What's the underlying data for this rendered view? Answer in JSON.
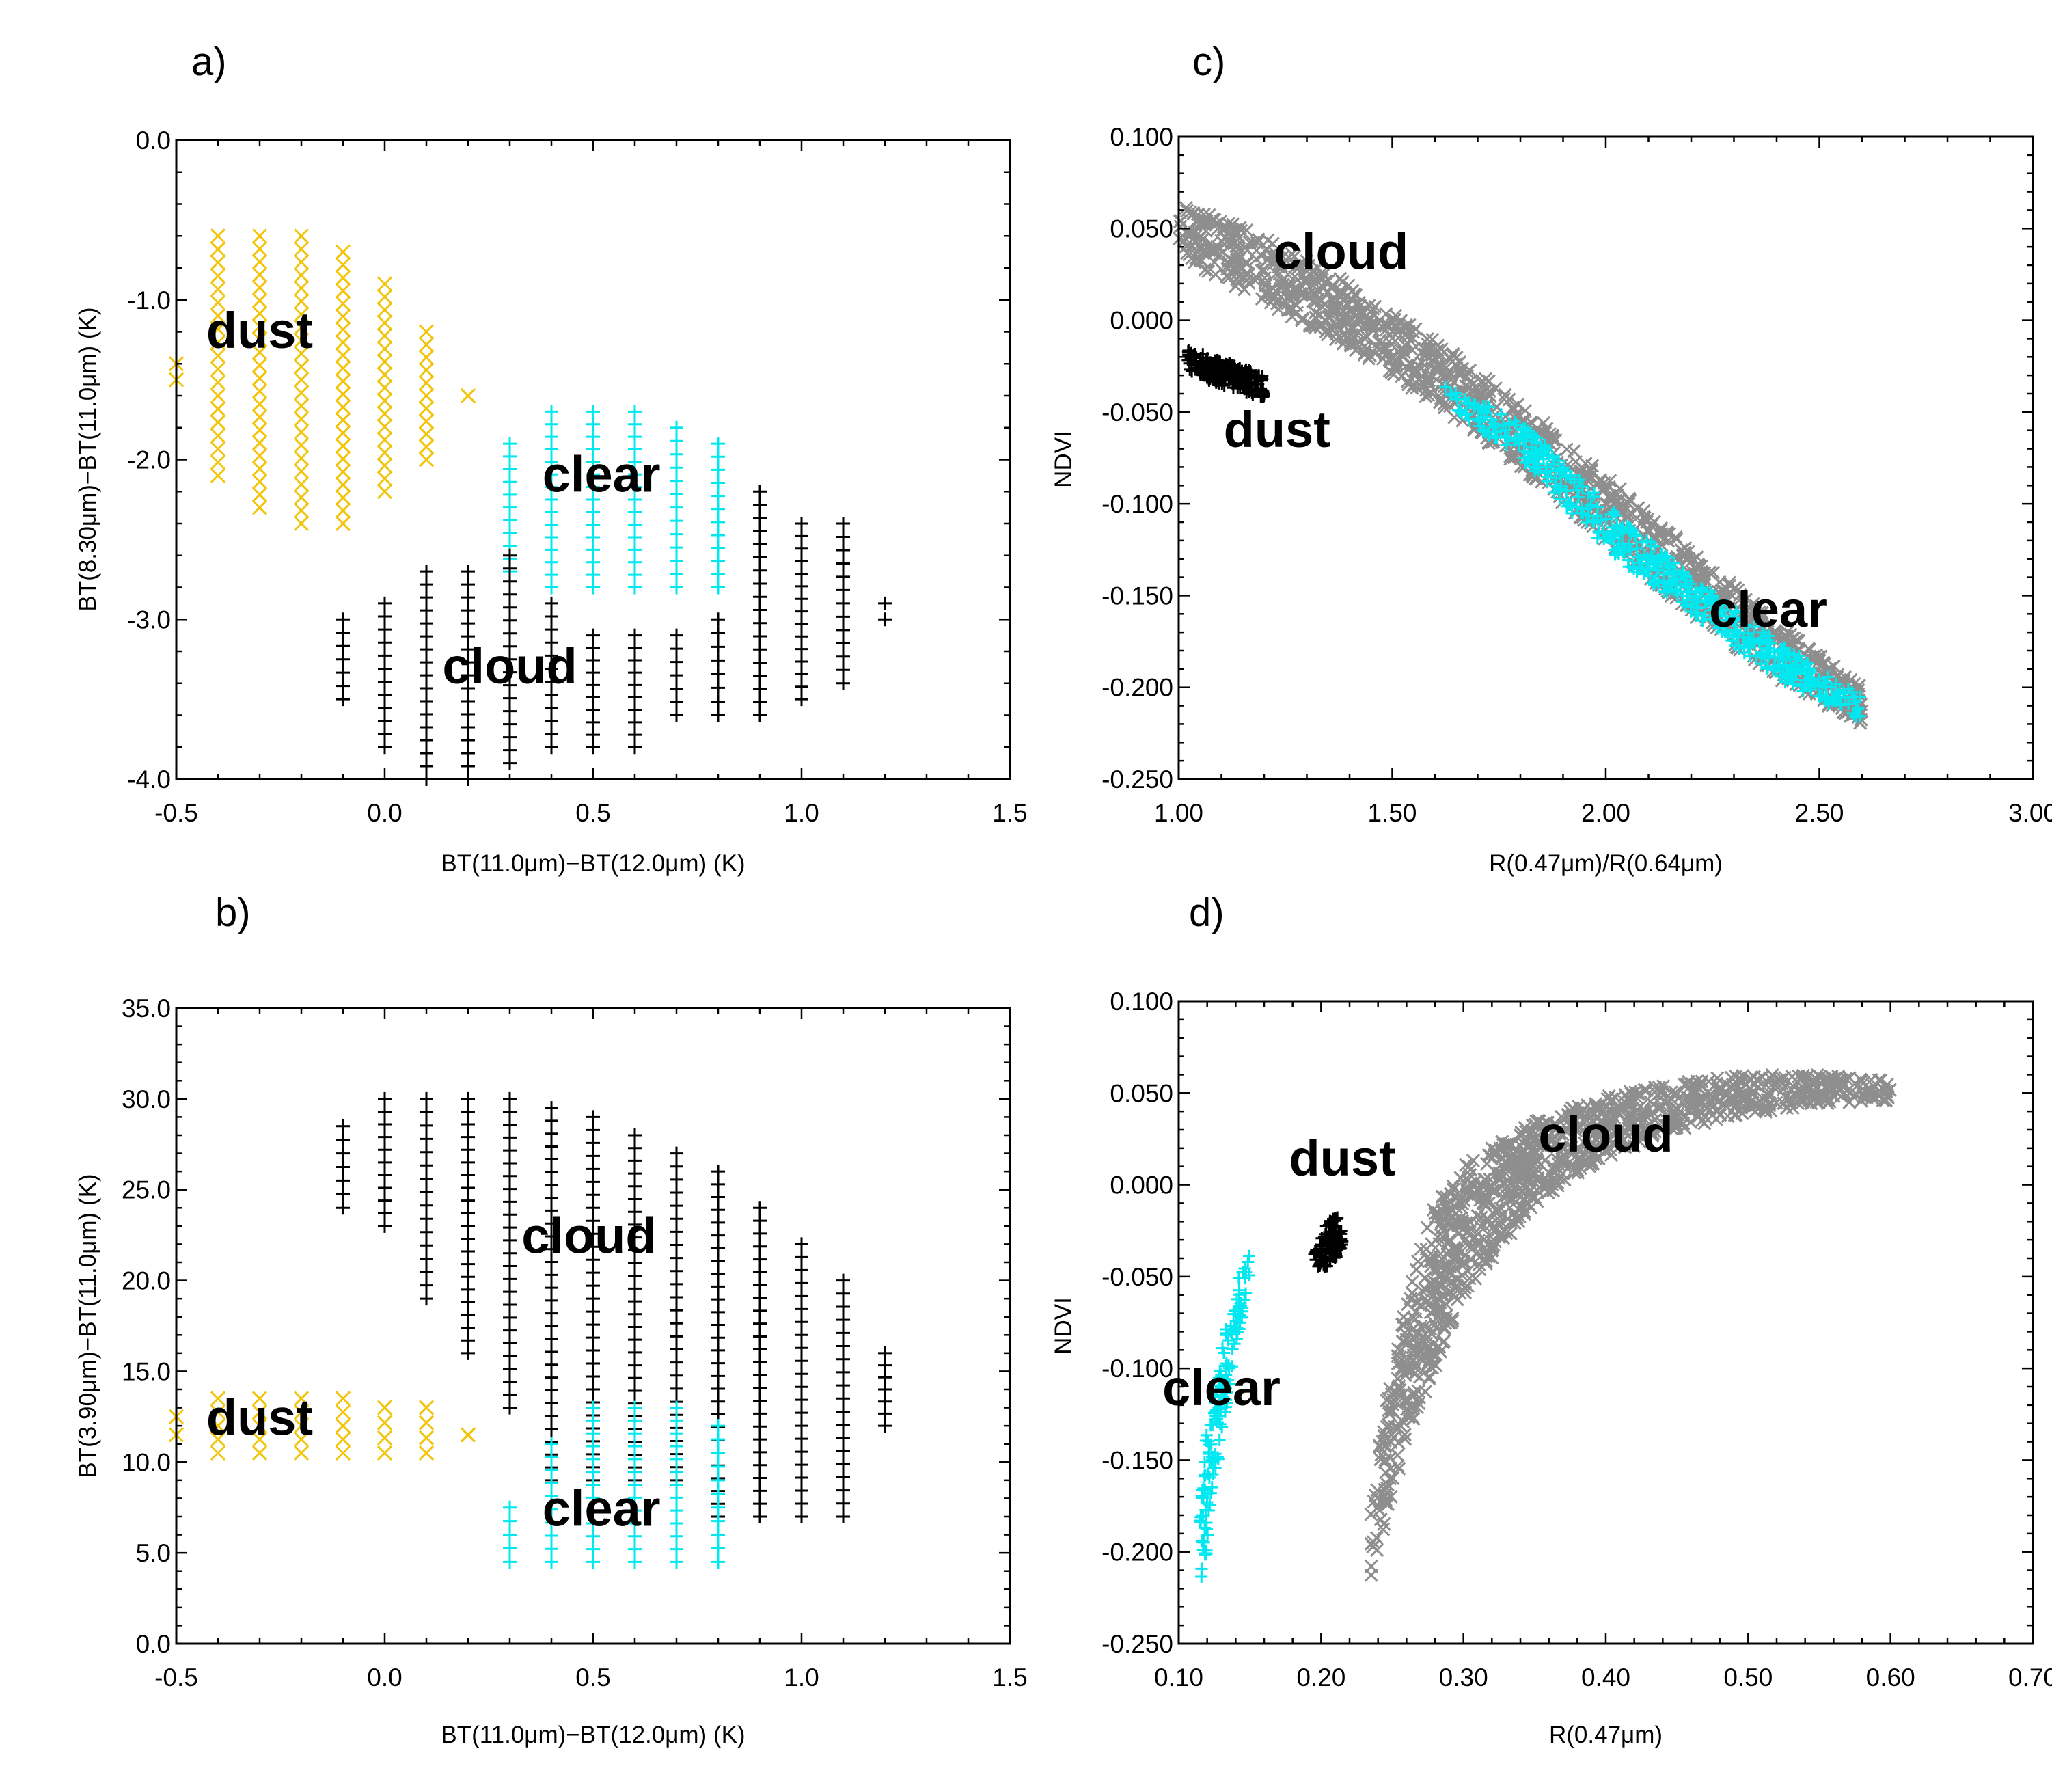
{
  "colors": {
    "dust": "#F2C40A",
    "clear": "#00E8F0",
    "cloud": "#000000",
    "cloud_gray": "#8E8E8E"
  },
  "chart_data": [
    {
      "id": "a",
      "type": "scatter",
      "panel_label": "a)",
      "xlabel": "BT(11.0μm)−BT(12.0μm) (K)",
      "ylabel": "BT(8.30μm)−BT(11.0μm) (K)",
      "xlim": [
        -0.5,
        1.5
      ],
      "ylim": [
        -4.0,
        0.0
      ],
      "x_ticks": [
        -0.5,
        0.0,
        0.5,
        1.0,
        1.5
      ],
      "x_tick_labels": [
        "-0.5",
        "0.0",
        "0.5",
        "1.0",
        "1.5"
      ],
      "y_ticks": [
        -4.0,
        -3.0,
        -2.0,
        -1.0,
        0.0
      ],
      "y_tick_labels": [
        "-4.0",
        "-3.0",
        "-2.0",
        "-1.0",
        "0.0"
      ],
      "annotations": [
        {
          "text": "dust",
          "x": -0.3,
          "y": -1.3
        },
        {
          "text": "clear",
          "x": 0.52,
          "y": -2.2
        },
        {
          "text": "cloud",
          "x": 0.3,
          "y": -3.4
        }
      ],
      "series": [
        {
          "name": "dust",
          "marker": "x",
          "color": "#F2C40A",
          "columns": [
            {
              "x": -0.5,
              "ymin": -1.5,
              "ymax": -1.4
            },
            {
              "x": -0.4,
              "ymin": -2.1,
              "ymax": -0.6
            },
            {
              "x": -0.3,
              "ymin": -2.3,
              "ymax": -0.6
            },
            {
              "x": -0.2,
              "ymin": -2.4,
              "ymax": -0.6
            },
            {
              "x": -0.1,
              "ymin": -2.4,
              "ymax": -0.7
            },
            {
              "x": 0.0,
              "ymin": -2.2,
              "ymax": -0.9
            },
            {
              "x": 0.1,
              "ymin": -2.0,
              "ymax": -1.2
            },
            {
              "x": 0.2,
              "ymin": -1.6,
              "ymax": -1.6
            }
          ]
        },
        {
          "name": "clear",
          "marker": "+",
          "color": "#00E8F0",
          "columns": [
            {
              "x": 0.3,
              "ymin": -2.7,
              "ymax": -1.9
            },
            {
              "x": 0.4,
              "ymin": -2.8,
              "ymax": -1.7
            },
            {
              "x": 0.5,
              "ymin": -2.8,
              "ymax": -1.7
            },
            {
              "x": 0.6,
              "ymin": -2.8,
              "ymax": -1.7
            },
            {
              "x": 0.7,
              "ymin": -2.8,
              "ymax": -1.8
            },
            {
              "x": 0.8,
              "ymin": -2.8,
              "ymax": -1.9
            }
          ]
        },
        {
          "name": "cloud",
          "marker": "+",
          "color": "#000000",
          "columns": [
            {
              "x": -0.1,
              "ymin": -3.5,
              "ymax": -3.0
            },
            {
              "x": 0.0,
              "ymin": -3.8,
              "ymax": -2.9
            },
            {
              "x": 0.1,
              "ymin": -4.0,
              "ymax": -2.7
            },
            {
              "x": 0.2,
              "ymin": -4.0,
              "ymax": -2.7
            },
            {
              "x": 0.3,
              "ymin": -3.9,
              "ymax": -2.6
            },
            {
              "x": 0.4,
              "ymin": -3.8,
              "ymax": -2.9
            },
            {
              "x": 0.5,
              "ymin": -3.8,
              "ymax": -3.1
            },
            {
              "x": 0.6,
              "ymin": -3.8,
              "ymax": -3.1
            },
            {
              "x": 0.7,
              "ymin": -3.6,
              "ymax": -3.1
            },
            {
              "x": 0.8,
              "ymin": -3.6,
              "ymax": -3.0
            },
            {
              "x": 0.9,
              "ymin": -3.6,
              "ymax": -2.2
            },
            {
              "x": 1.0,
              "ymin": -3.5,
              "ymax": -2.4
            },
            {
              "x": 1.1,
              "ymin": -3.4,
              "ymax": -2.4
            },
            {
              "x": 1.2,
              "ymin": -3.0,
              "ymax": -2.9
            }
          ]
        }
      ]
    },
    {
      "id": "b",
      "type": "scatter",
      "panel_label": "b)",
      "xlabel": "BT(11.0μm)−BT(12.0μm) (K)",
      "ylabel": "BT(3.90μm)−BT(11.0μm) (K)",
      "xlim": [
        -0.5,
        1.5
      ],
      "ylim": [
        0.0,
        35.0
      ],
      "x_ticks": [
        -0.5,
        0.0,
        0.5,
        1.0,
        1.5
      ],
      "x_tick_labels": [
        "-0.5",
        "0.0",
        "0.5",
        "1.0",
        "1.5"
      ],
      "y_ticks": [
        0,
        5,
        10,
        15,
        20,
        25,
        30,
        35
      ],
      "y_tick_labels": [
        "0.0",
        "5.0",
        "10.0",
        "15.0",
        "20.0",
        "25.0",
        "30.0",
        "35.0"
      ],
      "annotations": [
        {
          "text": "dust",
          "x": -0.3,
          "y": 11.5
        },
        {
          "text": "cloud",
          "x": 0.49,
          "y": 21.5
        },
        {
          "text": "clear",
          "x": 0.52,
          "y": 6.5
        }
      ],
      "series": [
        {
          "name": "dust",
          "marker": "x",
          "color": "#F2C40A",
          "columns": [
            {
              "x": -0.5,
              "ymin": 11.5,
              "ymax": 12.5
            },
            {
              "x": -0.4,
              "ymin": 10.5,
              "ymax": 13.5
            },
            {
              "x": -0.3,
              "ymin": 10.5,
              "ymax": 13.5
            },
            {
              "x": -0.2,
              "ymin": 10.5,
              "ymax": 13.5
            },
            {
              "x": -0.1,
              "ymin": 10.5,
              "ymax": 13.5
            },
            {
              "x": 0.0,
              "ymin": 10.5,
              "ymax": 13.0
            },
            {
              "x": 0.1,
              "ymin": 10.5,
              "ymax": 13.0
            },
            {
              "x": 0.2,
              "ymin": 11.5,
              "ymax": 11.5
            }
          ]
        },
        {
          "name": "cloud",
          "marker": "+",
          "color": "#000000",
          "columns": [
            {
              "x": -0.1,
              "ymin": 24.0,
              "ymax": 28.5
            },
            {
              "x": 0.0,
              "ymin": 23.0,
              "ymax": 30.0
            },
            {
              "x": 0.1,
              "ymin": 19.0,
              "ymax": 30.0
            },
            {
              "x": 0.2,
              "ymin": 16.0,
              "ymax": 30.0
            },
            {
              "x": 0.3,
              "ymin": 13.0,
              "ymax": 30.0
            },
            {
              "x": 0.4,
              "ymin": 9.0,
              "ymax": 29.5
            },
            {
              "x": 0.5,
              "ymin": 9.0,
              "ymax": 29.0
            },
            {
              "x": 0.6,
              "ymin": 9.0,
              "ymax": 28.0
            },
            {
              "x": 0.7,
              "ymin": 9.0,
              "ymax": 27.0
            },
            {
              "x": 0.8,
              "ymin": 7.0,
              "ymax": 26.0
            },
            {
              "x": 0.9,
              "ymin": 7.0,
              "ymax": 24.0
            },
            {
              "x": 1.0,
              "ymin": 7.0,
              "ymax": 22.0
            },
            {
              "x": 1.1,
              "ymin": 7.0,
              "ymax": 20.0
            },
            {
              "x": 1.2,
              "ymin": 12.0,
              "ymax": 16.0
            }
          ]
        },
        {
          "name": "clear",
          "marker": "+",
          "color": "#00E8F0",
          "columns": [
            {
              "x": 0.3,
              "ymin": 4.5,
              "ymax": 7.5
            },
            {
              "x": 0.4,
              "ymin": 4.5,
              "ymax": 11.0
            },
            {
              "x": 0.5,
              "ymin": 4.5,
              "ymax": 13.0
            },
            {
              "x": 0.6,
              "ymin": 4.5,
              "ymax": 13.0
            },
            {
              "x": 0.7,
              "ymin": 4.5,
              "ymax": 13.0
            },
            {
              "x": 0.8,
              "ymin": 4.5,
              "ymax": 12.0
            }
          ]
        }
      ]
    },
    {
      "id": "c",
      "type": "scatter",
      "panel_label": "c)",
      "xlabel": "R(0.47μm)/R(0.64μm)",
      "ylabel": "NDVI",
      "xlim": [
        1.0,
        3.0
      ],
      "ylim": [
        -0.25,
        0.1
      ],
      "x_ticks": [
        1.0,
        1.5,
        2.0,
        2.5,
        3.0
      ],
      "x_tick_labels": [
        "1.00",
        "1.50",
        "2.00",
        "2.50",
        "3.00"
      ],
      "y_ticks": [
        -0.25,
        -0.2,
        -0.15,
        -0.1,
        -0.05,
        0.0,
        0.05,
        0.1
      ],
      "y_tick_labels": [
        "-0.250",
        "-0.200",
        "-0.150",
        "-0.100",
        "-0.050",
        "0.000",
        "0.050",
        "0.100"
      ],
      "annotations": [
        {
          "text": "cloud",
          "x": 1.38,
          "y": 0.028
        },
        {
          "text": "dust",
          "x": 1.23,
          "y": -0.069
        },
        {
          "text": "clear",
          "x": 2.38,
          "y": -0.167
        }
      ],
      "series": [
        {
          "name": "cloud",
          "marker": "x",
          "color": "#8E8E8E",
          "band": [
            {
              "x": 1.0,
              "ymin": 0.035,
              "ymax": 0.065
            },
            {
              "x": 1.2,
              "ymin": 0.01,
              "ymax": 0.045
            },
            {
              "x": 1.4,
              "ymin": -0.015,
              "ymax": 0.02
            },
            {
              "x": 1.6,
              "ymin": -0.045,
              "ymax": -0.01
            },
            {
              "x": 1.8,
              "ymin": -0.08,
              "ymax": -0.045
            },
            {
              "x": 2.0,
              "ymin": -0.12,
              "ymax": -0.085
            },
            {
              "x": 2.2,
              "ymin": -0.16,
              "ymax": -0.125
            },
            {
              "x": 2.4,
              "ymin": -0.195,
              "ymax": -0.165
            },
            {
              "x": 2.6,
              "ymin": -0.22,
              "ymax": -0.2
            }
          ]
        },
        {
          "name": "dust",
          "marker": "+",
          "color": "#000000",
          "band": [
            {
              "x": 1.02,
              "ymin": -0.028,
              "ymax": -0.015
            },
            {
              "x": 1.1,
              "ymin": -0.036,
              "ymax": -0.022
            },
            {
              "x": 1.2,
              "ymin": -0.042,
              "ymax": -0.03
            }
          ]
        },
        {
          "name": "clear",
          "marker": "+",
          "color": "#00E8F0",
          "band": [
            {
              "x": 1.62,
              "ymin": -0.045,
              "ymax": -0.035
            },
            {
              "x": 1.8,
              "ymin": -0.075,
              "ymax": -0.055
            },
            {
              "x": 2.0,
              "ymin": -0.125,
              "ymax": -0.1
            },
            {
              "x": 2.2,
              "ymin": -0.16,
              "ymax": -0.14
            },
            {
              "x": 2.4,
              "ymin": -0.195,
              "ymax": -0.175
            },
            {
              "x": 2.6,
              "ymin": -0.218,
              "ymax": -0.205
            }
          ]
        }
      ]
    },
    {
      "id": "d",
      "type": "scatter",
      "panel_label": "d)",
      "xlabel": "R(0.47μm)",
      "ylabel": "NDVI",
      "xlim": [
        0.1,
        0.7
      ],
      "ylim": [
        -0.25,
        0.1
      ],
      "x_ticks": [
        0.1,
        0.2,
        0.3,
        0.4,
        0.5,
        0.6,
        0.7
      ],
      "x_tick_labels": [
        "0.10",
        "0.20",
        "0.30",
        "0.40",
        "0.50",
        "0.60",
        "0.70"
      ],
      "y_ticks": [
        -0.25,
        -0.2,
        -0.15,
        -0.1,
        -0.05,
        0.0,
        0.05,
        0.1
      ],
      "y_tick_labels": [
        "-0.250",
        "-0.200",
        "-0.150",
        "-0.100",
        "-0.050",
        "0.000",
        "0.050",
        "0.100"
      ],
      "annotations": [
        {
          "text": "dust",
          "x": 0.215,
          "y": 0.005
        },
        {
          "text": "cloud",
          "x": 0.4,
          "y": 0.018
        },
        {
          "text": "clear",
          "x": 0.13,
          "y": -0.12
        }
      ],
      "series": [
        {
          "name": "cloud",
          "marker": "x",
          "color": "#8E8E8E",
          "band": [
            {
              "x": 0.235,
              "ymin": -0.215,
              "ymax": -0.175
            },
            {
              "x": 0.245,
              "ymin": -0.185,
              "ymax": -0.12
            },
            {
              "x": 0.26,
              "ymin": -0.14,
              "ymax": -0.06
            },
            {
              "x": 0.28,
              "ymin": -0.1,
              "ymax": -0.01
            },
            {
              "x": 0.3,
              "ymin": -0.06,
              "ymax": 0.01
            },
            {
              "x": 0.35,
              "ymin": -0.01,
              "ymax": 0.035
            },
            {
              "x": 0.4,
              "ymin": 0.015,
              "ymax": 0.048
            },
            {
              "x": 0.45,
              "ymin": 0.03,
              "ymax": 0.056
            },
            {
              "x": 0.5,
              "ymin": 0.038,
              "ymax": 0.06
            },
            {
              "x": 0.55,
              "ymin": 0.044,
              "ymax": 0.06
            },
            {
              "x": 0.6,
              "ymin": 0.046,
              "ymax": 0.057
            }
          ]
        },
        {
          "name": "dust",
          "marker": "+",
          "color": "#000000",
          "band": [
            {
              "x": 0.195,
              "ymin": -0.045,
              "ymax": -0.038
            },
            {
              "x": 0.205,
              "ymin": -0.045,
              "ymax": -0.02
            },
            {
              "x": 0.215,
              "ymin": -0.035,
              "ymax": -0.015
            }
          ]
        },
        {
          "name": "clear",
          "marker": "+",
          "color": "#00E8F0",
          "band": [
            {
              "x": 0.115,
              "ymin": -0.22,
              "ymax": -0.18
            },
            {
              "x": 0.12,
              "ymin": -0.2,
              "ymax": -0.13
            },
            {
              "x": 0.13,
              "ymin": -0.14,
              "ymax": -0.09
            },
            {
              "x": 0.14,
              "ymin": -0.09,
              "ymax": -0.055
            },
            {
              "x": 0.15,
              "ymin": -0.05,
              "ymax": -0.035
            }
          ]
        }
      ]
    }
  ]
}
